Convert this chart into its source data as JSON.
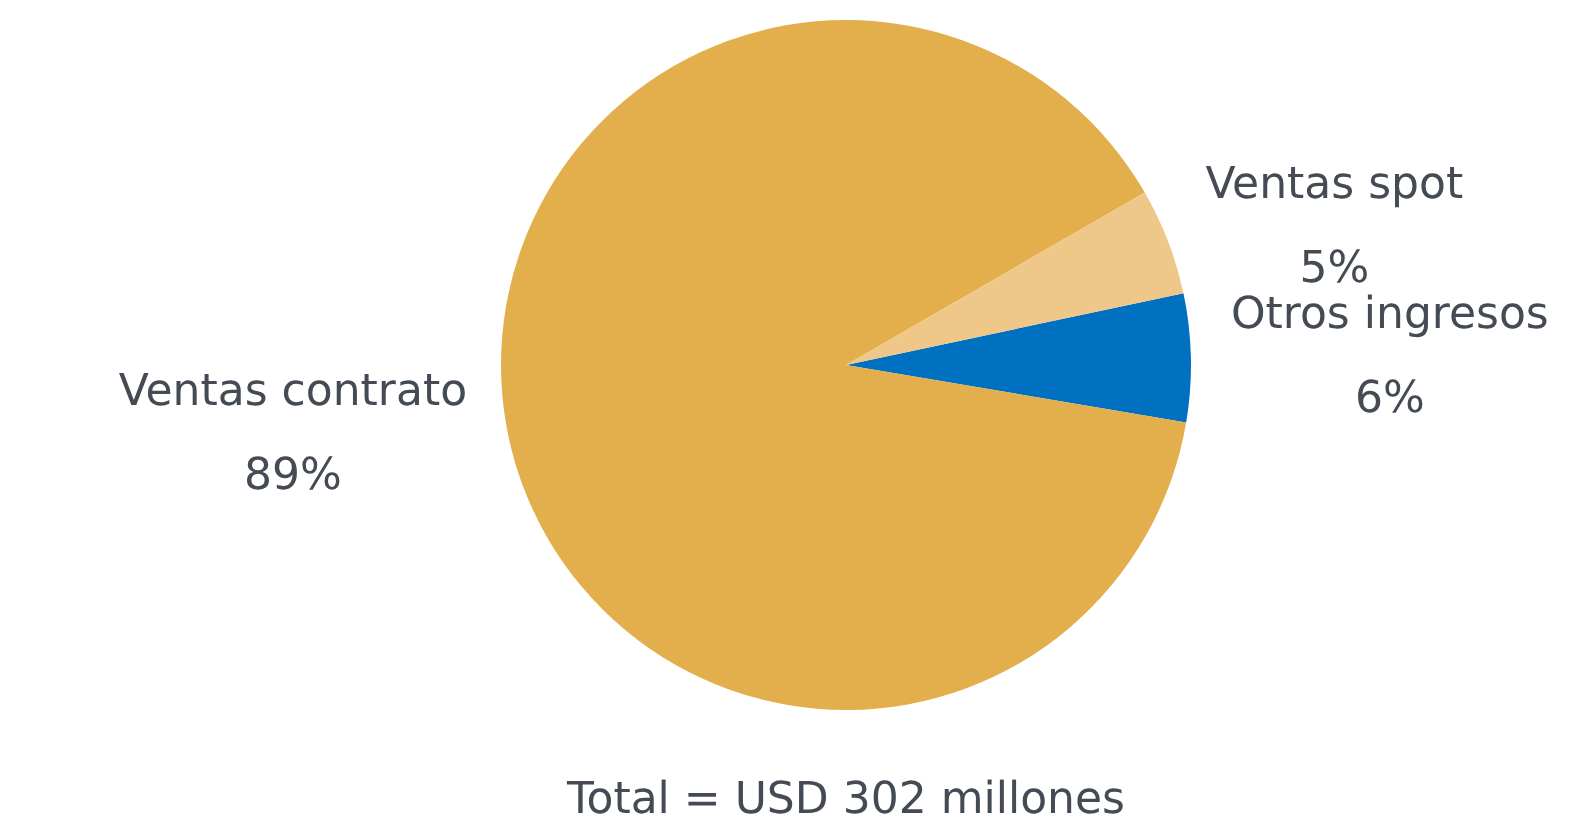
{
  "chart_data": {
    "type": "pie",
    "categories": [
      "Otros ingresos",
      "Ventas contrato",
      "Ventas spot"
    ],
    "values": [
      6,
      89,
      5
    ],
    "colors": [
      "#0070c0",
      "#e3ae4c",
      "#efc889"
    ],
    "value_labels": [
      "6%",
      "89%",
      "5%"
    ],
    "legend": false,
    "annotations": [
      "Total = USD 302 millones"
    ]
  }
}
